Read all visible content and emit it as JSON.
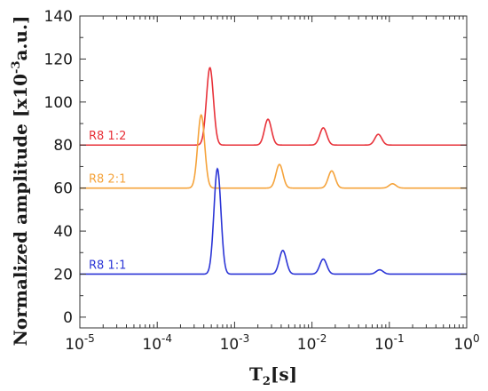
{
  "chart_data": {
    "type": "line",
    "title": "",
    "xlabel": {
      "base": "T",
      "sub": "2",
      "rest": "[s]"
    },
    "ylabel": {
      "pre": "Normalized amplitude [x10",
      "sup": "-3",
      "post": "a.u.]"
    },
    "x_scale": "log",
    "xlim": [
      1e-05,
      1
    ],
    "ylim": [
      -5,
      140
    ],
    "x_ticks": [
      {
        "value": 1e-05,
        "base": "10",
        "exp": "-5"
      },
      {
        "value": 0.0001,
        "base": "10",
        "exp": "-4"
      },
      {
        "value": 0.001,
        "base": "10",
        "exp": "-3"
      },
      {
        "value": 0.01,
        "base": "10",
        "exp": "-2"
      },
      {
        "value": 0.1,
        "base": "10",
        "exp": "-1"
      },
      {
        "value": 1,
        "base": "10",
        "exp": "0"
      }
    ],
    "y_ticks": [
      "0",
      "20",
      "40",
      "60",
      "80",
      "100",
      "120",
      "140"
    ],
    "grid": false,
    "series": [
      {
        "name": "R8 1:2",
        "color": "#e8323a",
        "baseline": 80,
        "peaks": [
          {
            "x": 0.00048,
            "y": 116
          },
          {
            "x": 0.0027,
            "y": 92
          },
          {
            "x": 0.014,
            "y": 88
          },
          {
            "x": 0.072,
            "y": 85
          }
        ]
      },
      {
        "name": "R8 2:1",
        "color": "#f5a33b",
        "baseline": 60,
        "peaks": [
          {
            "x": 0.00037,
            "y": 94
          },
          {
            "x": 0.0038,
            "y": 71
          },
          {
            "x": 0.018,
            "y": 68
          },
          {
            "x": 0.11,
            "y": 62
          }
        ]
      },
      {
        "name": "R8 1:1",
        "color": "#2b35d6",
        "baseline": 20,
        "peaks": [
          {
            "x": 0.0006,
            "y": 69
          },
          {
            "x": 0.0042,
            "y": 31
          },
          {
            "x": 0.014,
            "y": 27
          },
          {
            "x": 0.075,
            "y": 22
          }
        ]
      }
    ]
  }
}
